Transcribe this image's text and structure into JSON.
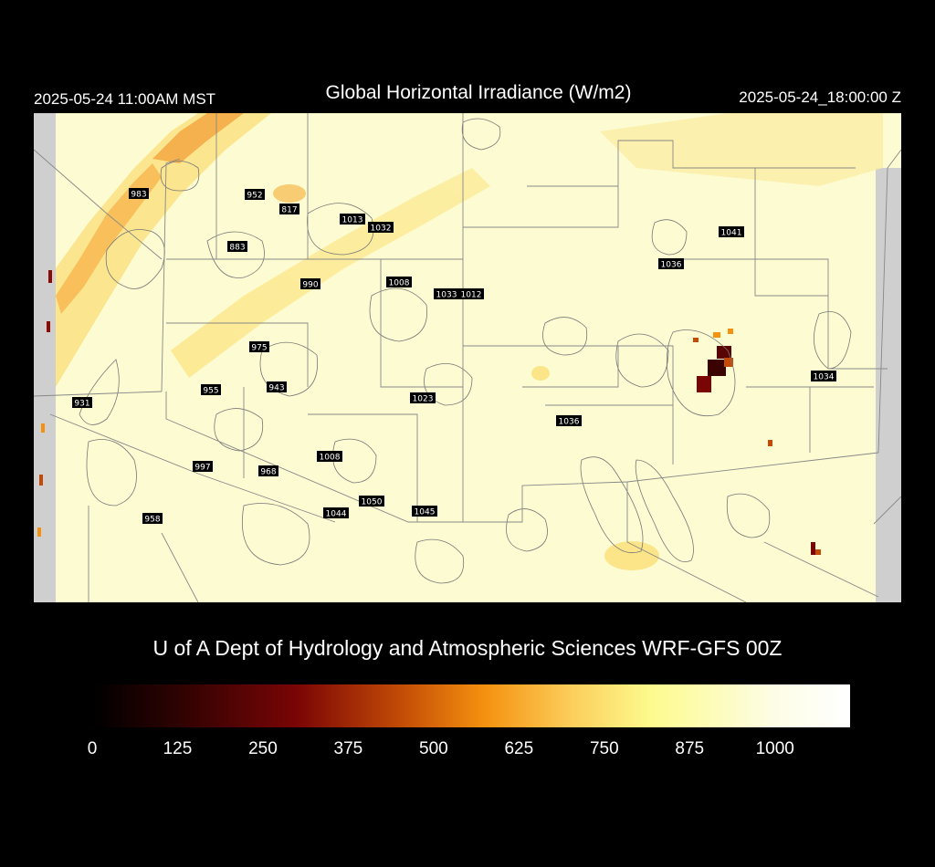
{
  "header": {
    "local_time": "2025-05-24 11:00AM MST",
    "title": "Global Horizontal Irradiance (W/m2)",
    "utc_time": "2025-05-24_18:00:00 Z"
  },
  "footer": {
    "credit": "U of A Dept of Hydrology and Atmospheric Sciences WRF-GFS 00Z"
  },
  "colorbar": {
    "min": 0,
    "max": 1110,
    "ticks": [
      "0",
      "125",
      "250",
      "375",
      "500",
      "625",
      "750",
      "875",
      "1000"
    ],
    "tick_values": [
      0,
      125,
      250,
      375,
      500,
      625,
      750,
      875,
      1000
    ],
    "stops": [
      {
        "value": 0,
        "color": "#000000"
      },
      {
        "value": 125,
        "color": "#2e0202"
      },
      {
        "value": 300,
        "color": "#7a0505"
      },
      {
        "value": 450,
        "color": "#c24a06"
      },
      {
        "value": 575,
        "color": "#f5910f"
      },
      {
        "value": 700,
        "color": "#fccd5a"
      },
      {
        "value": 820,
        "color": "#fdfb8e"
      },
      {
        "value": 1000,
        "color": "#fdfde6"
      },
      {
        "value": 1110,
        "color": "#ffffff"
      }
    ]
  },
  "stations": [
    {
      "label": "983"
    },
    {
      "label": "952"
    },
    {
      "label": "817"
    },
    {
      "label": "1013"
    },
    {
      "label": "1032"
    },
    {
      "label": "883"
    },
    {
      "label": "990"
    },
    {
      "label": "1008"
    },
    {
      "label": "1033"
    },
    {
      "label": "1012"
    },
    {
      "label": "1041"
    },
    {
      "label": "1036"
    },
    {
      "label": "975"
    },
    {
      "label": "955"
    },
    {
      "label": "943"
    },
    {
      "label": "1023"
    },
    {
      "label": "931"
    },
    {
      "label": "1034"
    },
    {
      "label": "1036"
    },
    {
      "label": "1008"
    },
    {
      "label": "997"
    },
    {
      "label": "968"
    },
    {
      "label": "1050"
    },
    {
      "label": "1044"
    },
    {
      "label": "1045"
    },
    {
      "label": "958"
    }
  ]
}
